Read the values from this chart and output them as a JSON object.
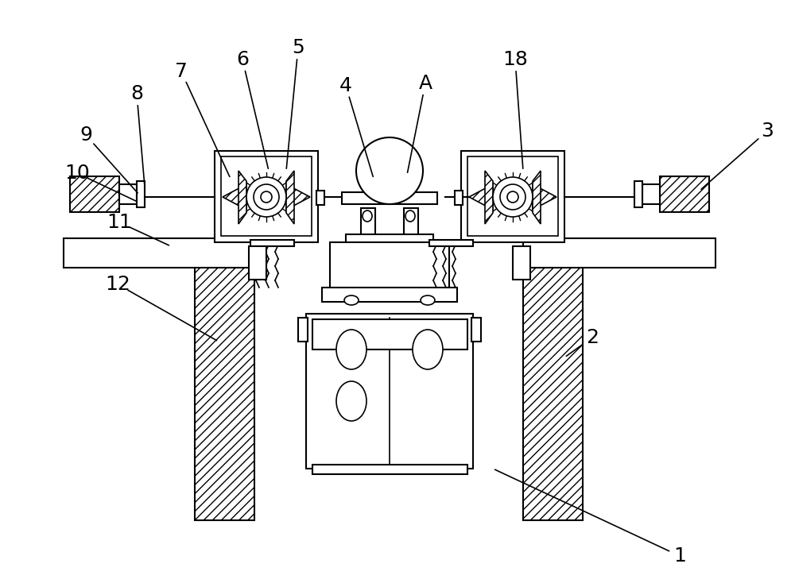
{
  "bg_color": "#ffffff",
  "line_color": "#000000",
  "label_color": "#000000",
  "label_fontsize": 18,
  "figsize": [
    10.0,
    7.34
  ],
  "dpi": 100,
  "annotations": [
    [
      "1",
      855,
      700,
      620,
      590
    ],
    [
      "2",
      745,
      425,
      710,
      450
    ],
    [
      "3",
      965,
      165,
      880,
      240
    ],
    [
      "4",
      435,
      108,
      470,
      225
    ],
    [
      "5",
      375,
      60,
      360,
      215
    ],
    [
      "6",
      305,
      75,
      338,
      215
    ],
    [
      "7",
      228,
      90,
      290,
      225
    ],
    [
      "8",
      172,
      118,
      182,
      235
    ],
    [
      "9",
      108,
      170,
      175,
      245
    ],
    [
      "10",
      97,
      218,
      175,
      255
    ],
    [
      "11",
      150,
      280,
      215,
      310
    ],
    [
      "12",
      148,
      358,
      275,
      430
    ],
    [
      "18",
      648,
      75,
      658,
      215
    ],
    [
      "A",
      535,
      105,
      512,
      220
    ]
  ]
}
